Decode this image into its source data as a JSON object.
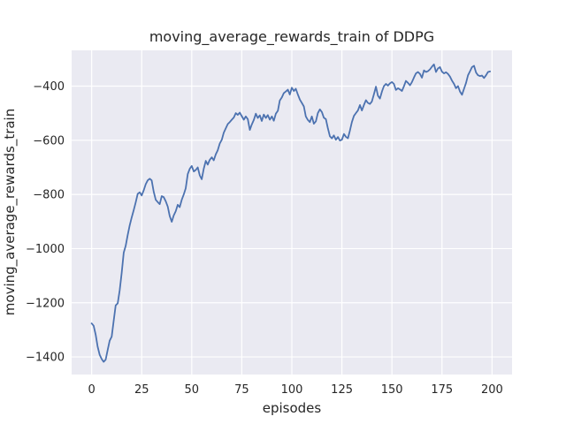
{
  "chart_data": {
    "type": "line",
    "title": "moving_average_rewards_train of DDPG",
    "xlabel": "episodes",
    "ylabel": "moving_average_rewards_train",
    "x_mode": "index (episode number, 0-199)",
    "xlim": [
      -10,
      210
    ],
    "ylim": [
      -1465,
      -268
    ],
    "grid": true,
    "legend_position": "none",
    "xticks": {
      "values": [
        0,
        25,
        50,
        75,
        100,
        125,
        150,
        175,
        200
      ],
      "labels": [
        "0",
        "25",
        "50",
        "75",
        "100",
        "125",
        "150",
        "175",
        "200"
      ]
    },
    "yticks": {
      "values": [
        -400,
        -600,
        -800,
        -1000,
        -1200,
        -1400
      ],
      "labels": [
        "−400",
        "−600",
        "−800",
        "−1000",
        "−1200",
        "−1400"
      ]
    },
    "colors": {
      "line": "#4c72b0",
      "axes_bg": "#eaeaf2",
      "grid": "#ffffff",
      "text": "#262626",
      "figure_bg": "#ffffff"
    },
    "series": [
      {
        "name": "moving_average_rewards_train",
        "values": [
          -1276,
          -1285,
          -1318,
          -1362,
          -1392,
          -1408,
          -1418,
          -1410,
          -1375,
          -1340,
          -1325,
          -1268,
          -1210,
          -1202,
          -1155,
          -1090,
          -1015,
          -990,
          -950,
          -915,
          -885,
          -858,
          -830,
          -798,
          -792,
          -804,
          -785,
          -762,
          -748,
          -742,
          -748,
          -790,
          -820,
          -828,
          -836,
          -806,
          -810,
          -825,
          -845,
          -880,
          -901,
          -878,
          -862,
          -838,
          -847,
          -820,
          -800,
          -777,
          -725,
          -705,
          -695,
          -715,
          -710,
          -700,
          -730,
          -744,
          -705,
          -676,
          -690,
          -672,
          -663,
          -674,
          -652,
          -637,
          -612,
          -598,
          -572,
          -556,
          -540,
          -533,
          -524,
          -516,
          -500,
          -506,
          -498,
          -511,
          -524,
          -512,
          -522,
          -562,
          -542,
          -525,
          -502,
          -518,
          -508,
          -529,
          -505,
          -518,
          -507,
          -524,
          -512,
          -528,
          -502,
          -491,
          -453,
          -442,
          -426,
          -420,
          -413,
          -431,
          -406,
          -418,
          -410,
          -431,
          -450,
          -462,
          -475,
          -512,
          -525,
          -533,
          -512,
          -539,
          -530,
          -500,
          -486,
          -496,
          -517,
          -522,
          -555,
          -585,
          -593,
          -582,
          -598,
          -588,
          -601,
          -598,
          -577,
          -587,
          -593,
          -565,
          -533,
          -510,
          -500,
          -490,
          -470,
          -490,
          -470,
          -452,
          -462,
          -466,
          -457,
          -430,
          -402,
          -435,
          -446,
          -420,
          -400,
          -392,
          -398,
          -390,
          -385,
          -392,
          -414,
          -408,
          -412,
          -418,
          -400,
          -381,
          -388,
          -397,
          -385,
          -368,
          -353,
          -348,
          -355,
          -369,
          -342,
          -348,
          -345,
          -338,
          -328,
          -320,
          -348,
          -335,
          -330,
          -347,
          -353,
          -349,
          -355,
          -365,
          -380,
          -392,
          -408,
          -400,
          -420,
          -432,
          -410,
          -389,
          -360,
          -345,
          -330,
          -325,
          -350,
          -360,
          -363,
          -361,
          -370,
          -360,
          -348,
          -346
        ]
      }
    ]
  }
}
